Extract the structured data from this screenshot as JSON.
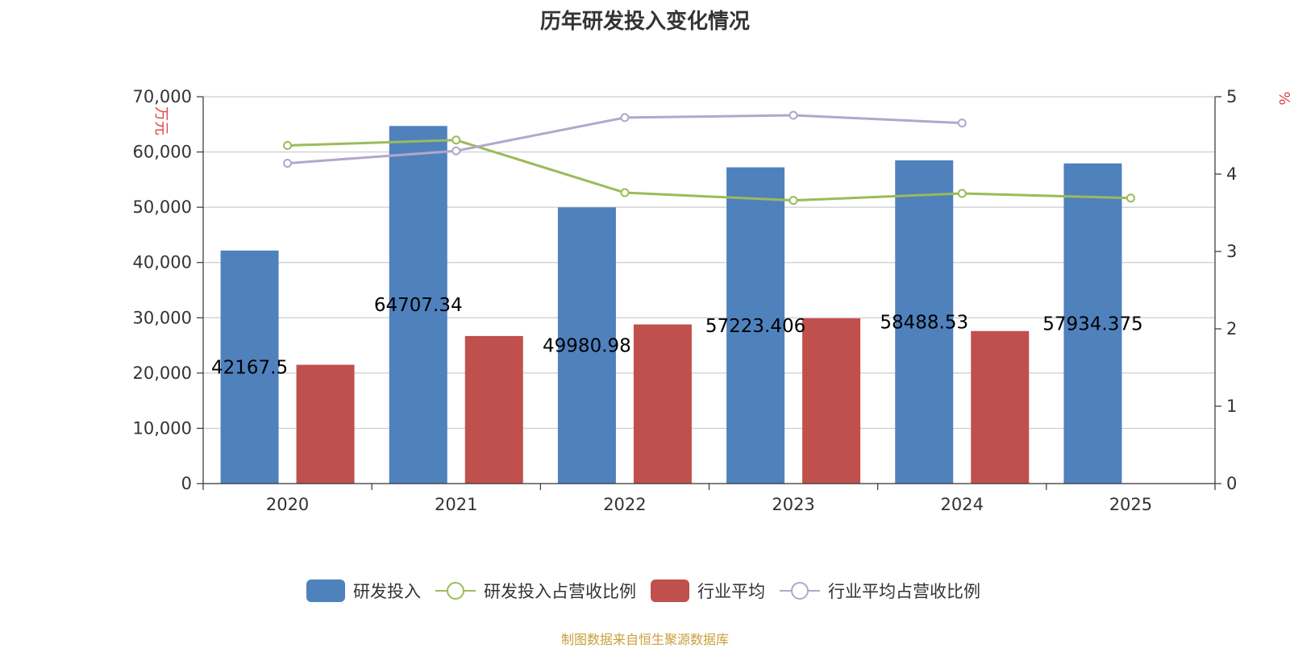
{
  "title": "历年研发投入变化情况",
  "source": "制图数据来自恒生聚源数据库",
  "chart_data": {
    "type": "bar",
    "categories": [
      "2020",
      "2021",
      "2022",
      "2023",
      "2024",
      "2025"
    ],
    "y_left": {
      "unit": "万元",
      "range": [
        0,
        70000
      ],
      "ticks": [
        "0",
        "10,000",
        "20,000",
        "30,000",
        "40,000",
        "50,000",
        "60,000",
        "70,000"
      ]
    },
    "y_right": {
      "unit": "%",
      "range": [
        0,
        5
      ],
      "ticks": [
        "0",
        "1",
        "2",
        "3",
        "4",
        "5"
      ]
    },
    "grid": true,
    "legend_position": "bottom",
    "series": [
      {
        "name": "研发投入",
        "type": "bar",
        "axis": "left",
        "color": "#4f81bd",
        "values": [
          42167.5,
          64707.34,
          49980.98,
          57223.406,
          58488.53,
          57934.375
        ],
        "labels": [
          "42167.5",
          "64707.34",
          "49980.98",
          "57223.406",
          "58488.53",
          "57934.375"
        ]
      },
      {
        "name": "研发投入占营收比例",
        "type": "line",
        "axis": "right",
        "color": "#9bbb59",
        "values": [
          4.37,
          4.44,
          3.76,
          3.66,
          3.75,
          3.69
        ]
      },
      {
        "name": "行业平均",
        "type": "bar",
        "axis": "left",
        "color": "#c0504d",
        "values": [
          21500,
          26700,
          28800,
          29900,
          27600,
          null
        ]
      },
      {
        "name": "行业平均占营收比例",
        "type": "line",
        "axis": "right",
        "color": "#b3a6cc",
        "values": [
          4.14,
          4.3,
          4.73,
          4.76,
          4.66,
          null
        ]
      }
    ]
  }
}
